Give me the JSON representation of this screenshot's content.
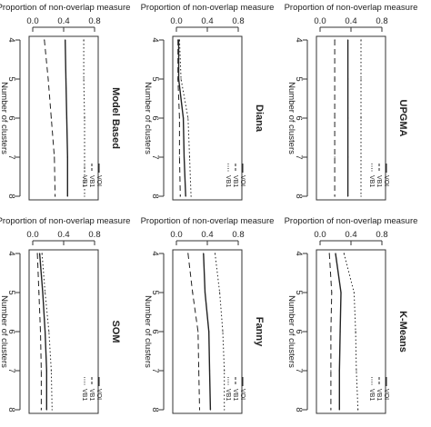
{
  "chart_data": [
    {
      "type": "line",
      "title": "Model Based",
      "xlabel": "Number of clusters",
      "ylabel": "Proportion of non-overlap measure",
      "x": [
        4,
        5,
        6,
        7,
        8
      ],
      "ylim": [
        0,
        0.8
      ],
      "y_ticks": [
        "0.0",
        "0.4",
        "0.8"
      ],
      "legend_position": "bottom-right",
      "series": [
        {
          "name": "VOI",
          "line_style": "solid",
          "values": [
            0.42,
            0.43,
            0.44,
            0.45,
            0.45
          ]
        },
        {
          "name": "VB1",
          "line_style": "dashed",
          "values": [
            0.15,
            0.2,
            0.24,
            0.28,
            0.29
          ]
        },
        {
          "name": "VB1",
          "line_style": "dotted",
          "values": [
            0.66,
            0.66,
            0.67,
            0.67,
            0.67
          ]
        }
      ]
    },
    {
      "type": "line",
      "title": "Diana",
      "xlabel": "Number of clusters",
      "ylabel": "Proportion of non-overlap measure",
      "x": [
        4,
        5,
        6,
        7,
        8
      ],
      "ylim": [
        0,
        0.8
      ],
      "y_ticks": [
        "0.0",
        "0.4",
        "0.8"
      ],
      "legend_position": "bottom-right",
      "series": [
        {
          "name": "VOI",
          "line_style": "solid",
          "values": [
            0.03,
            0.03,
            0.09,
            0.1,
            0.12
          ]
        },
        {
          "name": "VB1",
          "line_style": "dashed",
          "values": [
            0.02,
            0.02,
            0.04,
            0.04,
            0.05
          ]
        },
        {
          "name": "VB1",
          "line_style": "dotted",
          "values": [
            0.04,
            0.06,
            0.15,
            0.17,
            0.19
          ]
        }
      ]
    },
    {
      "type": "line",
      "title": "UPGMA",
      "xlabel": "Number of clusters",
      "ylabel": "Proportion of non-overlap measure",
      "x": [
        4,
        5,
        6,
        7,
        8
      ],
      "ylim": [
        0,
        0.8
      ],
      "y_ticks": [
        "0.0",
        "0.4",
        "0.8"
      ],
      "legend_position": "bottom-right",
      "series": [
        {
          "name": "VOI",
          "line_style": "solid",
          "values": [
            0.36,
            0.36,
            0.36,
            0.36,
            0.36
          ]
        },
        {
          "name": "VB1",
          "line_style": "dashed",
          "values": [
            0.19,
            0.19,
            0.19,
            0.19,
            0.19
          ]
        },
        {
          "name": "VB1",
          "line_style": "dotted",
          "values": [
            0.53,
            0.53,
            0.53,
            0.53,
            0.53
          ]
        }
      ]
    },
    {
      "type": "line",
      "title": "SOM",
      "xlabel": "Number of clusters",
      "ylabel": "Proportion of non-overlap measure",
      "x": [
        4,
        5,
        6,
        7,
        8
      ],
      "ylim": [
        0,
        0.8
      ],
      "y_ticks": [
        "0.0",
        "0.4",
        "0.8"
      ],
      "legend_position": "bottom-right",
      "series": [
        {
          "name": "VOI",
          "line_style": "solid",
          "values": [
            0.09,
            0.13,
            0.16,
            0.18,
            0.18
          ]
        },
        {
          "name": "VB1",
          "line_style": "dashed",
          "values": [
            0.06,
            0.08,
            0.1,
            0.11,
            0.11
          ]
        },
        {
          "name": "VB1",
          "line_style": "dotted",
          "values": [
            0.12,
            0.16,
            0.21,
            0.24,
            0.25
          ]
        }
      ]
    },
    {
      "type": "line",
      "title": "Fanny",
      "xlabel": "Number of clusters",
      "ylabel": "Proportion of non-overlap measure",
      "x": [
        4,
        5,
        6,
        7,
        8
      ],
      "ylim": [
        0,
        0.8
      ],
      "y_ticks": [
        "0.0",
        "0.4",
        "0.8"
      ],
      "legend_position": "bottom-right",
      "series": [
        {
          "name": "VOI",
          "line_style": "solid",
          "values": [
            0.35,
            0.37,
            0.42,
            0.43,
            0.44
          ]
        },
        {
          "name": "VB1",
          "line_style": "dashed",
          "values": [
            0.15,
            0.21,
            0.28,
            0.29,
            0.3
          ]
        },
        {
          "name": "VB1",
          "line_style": "dotted",
          "values": [
            0.5,
            0.56,
            0.6,
            0.62,
            0.62
          ]
        }
      ]
    },
    {
      "type": "line",
      "title": "K-Means",
      "xlabel": "Number of clusters",
      "ylabel": "Proportion of non-overlap measure",
      "x": [
        4,
        5,
        6,
        7,
        8
      ],
      "ylim": [
        0,
        0.8
      ],
      "y_ticks": [
        "0.0",
        "0.4",
        "0.8"
      ],
      "legend_position": "bottom-right",
      "series": [
        {
          "name": "VOI",
          "line_style": "solid",
          "values": [
            0.2,
            0.27,
            0.26,
            0.25,
            0.25
          ]
        },
        {
          "name": "VB1",
          "line_style": "dashed",
          "values": [
            0.12,
            0.15,
            0.14,
            0.14,
            0.14
          ]
        },
        {
          "name": "VB1",
          "line_style": "dotted",
          "values": [
            0.31,
            0.44,
            0.46,
            0.47,
            0.49
          ]
        }
      ]
    }
  ]
}
